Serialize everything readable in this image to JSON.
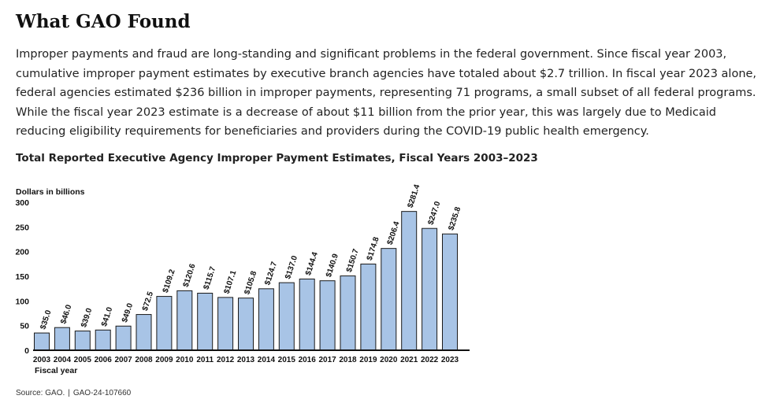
{
  "section": {
    "heading": "What GAO Found",
    "paragraph": "Improper payments and fraud are long-standing and significant problems in the federal government. Since fiscal year 2003, cumulative improper payment estimates by executive branch agencies have totaled about $2.7 trillion. In fiscal year 2023 alone, federal agencies estimated $236 billion in improper payments, representing 71 programs, a small subset of all federal programs. While the fiscal year 2023 estimate is a decrease of about $11 billion from the prior year, this was largely due to Medicaid reducing eligibility requirements for beneficiaries and providers during the COVID-19 public health emergency."
  },
  "chart_data": {
    "type": "bar",
    "title": "Total Reported Executive Agency Improper Payment Estimates, Fiscal Years 2003–2023",
    "ylabel": "Dollars in billions",
    "xlabel": "Fiscal year",
    "ylim": [
      0,
      300
    ],
    "yticks": [
      0,
      50,
      100,
      150,
      200,
      250,
      300
    ],
    "grid": false,
    "bar_color": "#a8c4e6",
    "bar_stroke": "#1a1a1a",
    "categories": [
      "2003",
      "2004",
      "2005",
      "2006",
      "2007",
      "2008",
      "2009",
      "2010",
      "2011",
      "2012",
      "2013",
      "2014",
      "2015",
      "2016",
      "2017",
      "2018",
      "2019",
      "2020",
      "2021",
      "2022",
      "2023"
    ],
    "values": [
      35.0,
      46.0,
      39.0,
      41.0,
      49.0,
      72.5,
      109.2,
      120.6,
      115.7,
      107.1,
      105.8,
      124.7,
      137.0,
      144.4,
      140.9,
      150.7,
      174.8,
      206.4,
      281.4,
      247.0,
      235.8
    ],
    "data_labels": [
      "$35.0",
      "$46.0",
      "$39.0",
      "$41.0",
      "$49.0",
      "$72.5",
      "$109.2",
      "$120.6",
      "$115.7",
      "$107.1",
      "$105.8",
      "$124.7",
      "$137.0",
      "$144.4",
      "$140.9",
      "$150.7",
      "$174.8",
      "$206.4",
      "$281.4",
      "$247.0",
      "$235.8"
    ]
  },
  "source": {
    "label": "Source: GAO.",
    "separator": "|",
    "report_number": "GAO-24-107660"
  }
}
